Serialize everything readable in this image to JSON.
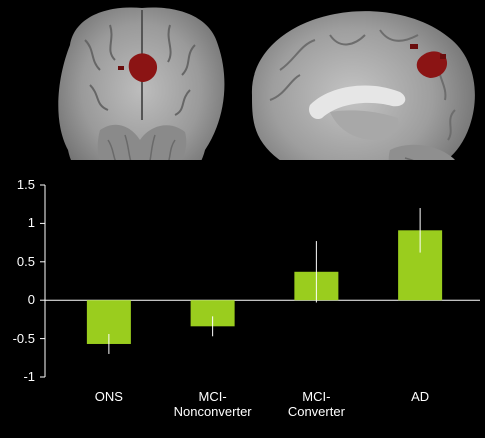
{
  "chart_data": {
    "type": "bar",
    "categories": [
      "ONS",
      "MCI-\nNonconverter",
      "MCI-\nConverter",
      "AD"
    ],
    "series": [
      {
        "values": [
          -0.57,
          -0.34,
          0.37,
          0.91
        ],
        "errors": [
          0.13,
          0.13,
          0.4,
          0.29
        ]
      }
    ],
    "title": "",
    "xlabel": "",
    "ylabel": "",
    "ylim": [
      -1,
      1.5
    ],
    "yticks": [
      "1.5",
      "1",
      "0.5",
      "0",
      "-0.5",
      "-1"
    ],
    "grid": false,
    "legend": "none",
    "colors": {
      "bar": "#9acd1e",
      "error": "#ffffff",
      "axis": "#ffffff",
      "background": "#000000",
      "blob": "#8b1414"
    }
  },
  "images": [
    {
      "name": "coronal-brain-slice"
    },
    {
      "name": "sagittal-brain-slice"
    }
  ]
}
